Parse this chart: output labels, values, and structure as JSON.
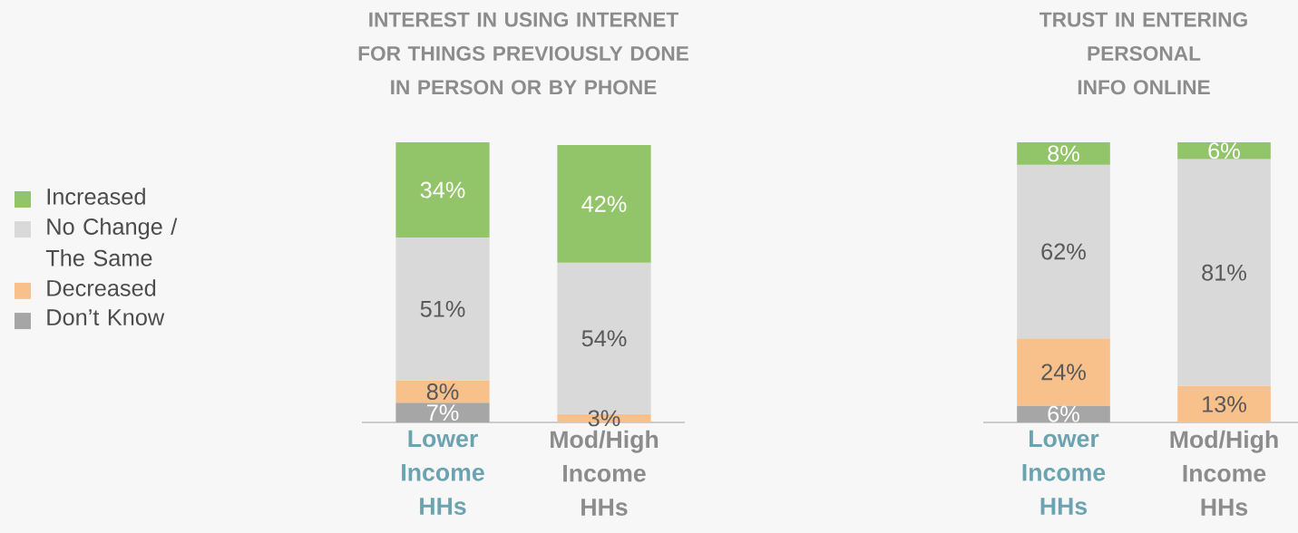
{
  "chart_data": [
    {
      "type": "bar",
      "title": "INTEREST IN USING INTERNET FOR THINGS PREVIOUSLY DONE IN PERSON OR BY PHONE",
      "categories": [
        "Lower Income HHs",
        "Mod/High Income HHs"
      ],
      "stacked": true,
      "ylim": [
        0,
        100
      ],
      "tick_labels": "x",
      "legend": "left",
      "series": [
        {
          "name": "Don’t Know",
          "color": "#a6a6a6",
          "values": [
            7,
            null
          ],
          "value_labels": [
            "7%",
            null
          ]
        },
        {
          "name": "Decreased",
          "color": "#f8c08b",
          "values": [
            8,
            3
          ],
          "value_labels": [
            "8%",
            "3%"
          ]
        },
        {
          "name": "No Change / The Same",
          "color": "#d9d9d9",
          "values": [
            51,
            54
          ],
          "value_labels": [
            "51%",
            "54%"
          ]
        },
        {
          "name": "Increased",
          "color": "#92c46a",
          "values": [
            34,
            42
          ],
          "value_labels": [
            "34%",
            "42%"
          ]
        }
      ]
    },
    {
      "type": "bar",
      "title": "TRUST IN ENTERING PERSONAL INFO ONLINE",
      "categories": [
        "Lower Income HHs",
        "Mod/High Income HHs"
      ],
      "stacked": true,
      "ylim": [
        0,
        100
      ],
      "tick_labels": "x",
      "series": [
        {
          "color": "#a6a6a6",
          "values": [
            6,
            null
          ],
          "value_labels": [
            "6%",
            null
          ]
        },
        {
          "color": "#f8c08b",
          "values": [
            24,
            13
          ],
          "value_labels": [
            "24%",
            "13%"
          ]
        },
        {
          "color": "#d9d9d9",
          "values": [
            62,
            81
          ],
          "value_labels": [
            "62%",
            "81%"
          ]
        },
        {
          "color": "#92c46a",
          "values": [
            8,
            6
          ],
          "value_labels": [
            "8%",
            "6%"
          ]
        }
      ]
    }
  ]
}
